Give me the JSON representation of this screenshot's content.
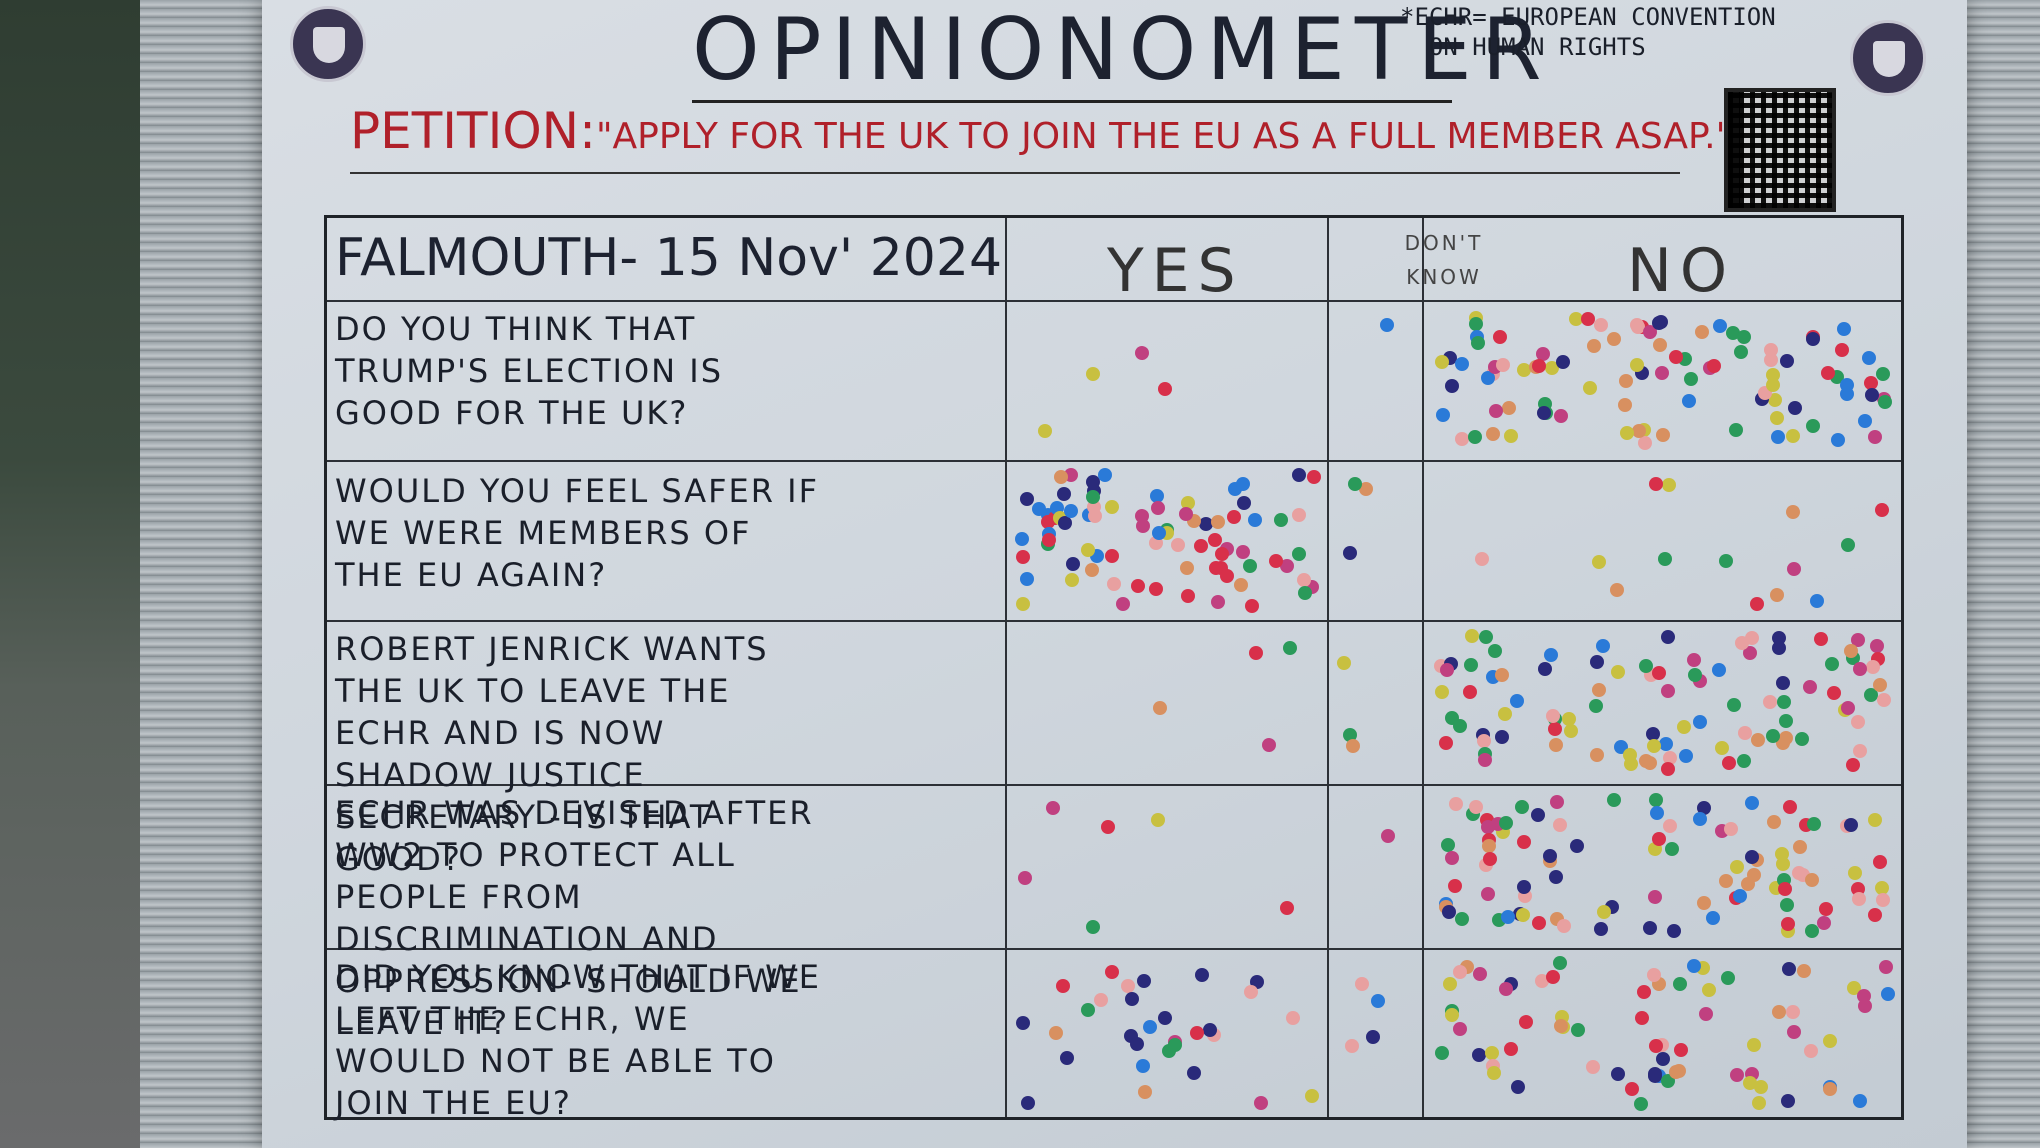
{
  "board": {
    "title": "OPINIONOMETER",
    "footnote": "*ECHR= EUROPEAN CONVENTION\n  ON HUMAN RIGHTS",
    "petition_label": "PETITION:",
    "petition_text": "\"APPLY FOR THE UK TO JOIN THE EU AS A FULL MEMBER ASAP.\"",
    "logo_icon": "shield-logo-icon",
    "qr_icon": "qr-code-icon"
  },
  "table": {
    "place_date": "FALMOUTH- 15 Nov' 2024",
    "col_yes": "YES",
    "col_dont_know": "DON'T KNOW",
    "col_no": "NO",
    "questions": [
      {
        "text": "DO YOU THINK THAT TRUMP'S ELECTION IS GOOD FOR THE UK?"
      },
      {
        "text": "WOULD YOU FEEL SAFER IF WE WERE MEMBERS OF THE EU AGAIN?"
      },
      {
        "text": "ROBERT JENRICK WANTS THE UK TO LEAVE THE ECHR AND IS NOW SHADOW JUSTICE SECRETARY - IS THAT GOOD?"
      },
      {
        "text": "ECHR WAS DEVISED AFTER WW2 TO PROTECT ALL PEOPLE FROM DISCRIMINATION AND OPPRESSION- SHOULD WE LEAVE IT?"
      },
      {
        "text": "DID YOU KNOW THAT IF WE LEFT THE ECHR, WE WOULD NOT BE ABLE TO JOIN THE EU?"
      }
    ]
  },
  "dot_colors": [
    "#d8304a",
    "#2a9a5a",
    "#2a2a7a",
    "#2a7ad8",
    "#c8c040",
    "#d89060",
    "#c04080",
    "#e8a0a0"
  ],
  "dot_counts": [
    {
      "yes": 4,
      "dont_know": 1,
      "no": 95
    },
    {
      "yes": 80,
      "dont_know": 3,
      "no": 14
    },
    {
      "yes": 4,
      "dont_know": 3,
      "no": 95
    },
    {
      "yes": 6,
      "dont_know": 1,
      "no": 95
    },
    {
      "yes": 30,
      "dont_know": 4,
      "no": 70
    }
  ]
}
